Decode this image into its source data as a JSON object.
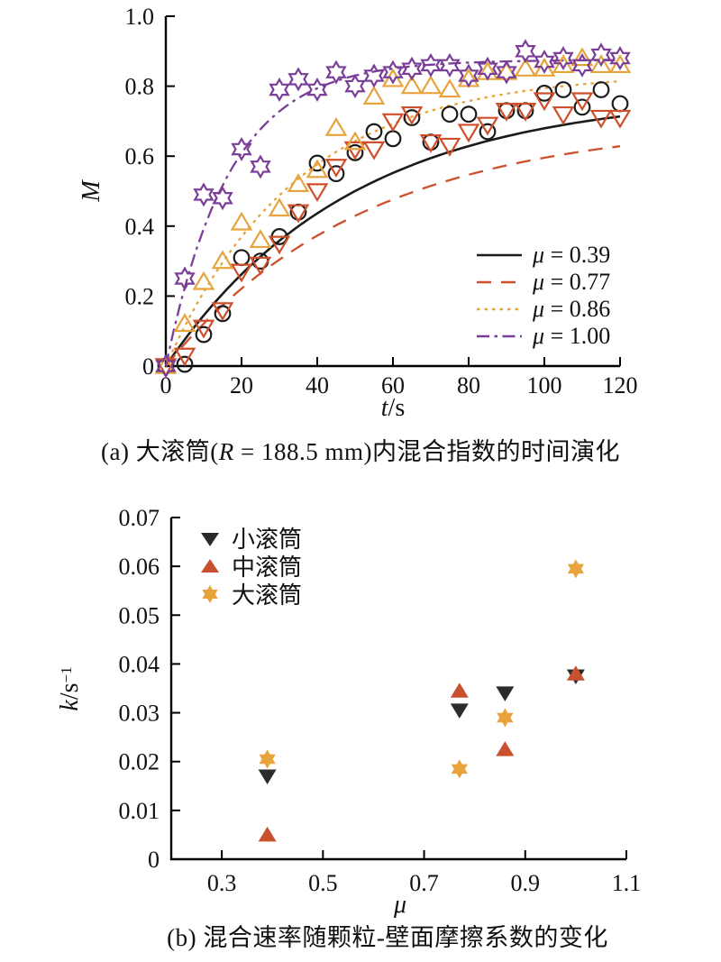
{
  "figure": {
    "background": "#ffffff",
    "axis_color": "#000000"
  },
  "captions": {
    "a": {
      "prefix": "(a) 大滚筒(",
      "var": "R",
      "mid": " = 188.5 mm)",
      "suffix": "内混合指数的时间演化"
    },
    "b": {
      "text": "(b) 混合速率随颗粒-壁面摩擦系数的变化"
    }
  },
  "chart_data": [
    {
      "id": "a",
      "type": "scatter",
      "title": "Mixing index evolution in large drum",
      "xlabel_parts": {
        "italic": "t",
        "rest": "/s"
      },
      "ylabel": "M",
      "xlim": [
        0,
        120
      ],
      "ylim": [
        0,
        1.0
      ],
      "xticks": [
        0,
        20,
        40,
        60,
        80,
        100,
        120
      ],
      "xtick_labels": [
        "0",
        "20",
        "40",
        "60",
        "80",
        "100",
        "120"
      ],
      "yticks": [
        0,
        0.2,
        0.4,
        0.6,
        0.8,
        1.0
      ],
      "ytick_labels": [
        "0",
        "0.2",
        "0.4",
        "0.6",
        "0.8",
        "1.0"
      ],
      "grid": false,
      "legend_position": "bottom-right",
      "series": [
        {
          "name": "mu-0.39",
          "legend_symbol": "μ",
          "legend_value": " = 0.39",
          "color": "#1b1b1b",
          "marker": "circle-open",
          "dash": "none",
          "fit": {
            "A": 0.78,
            "k": 0.0205
          },
          "points": [
            [
              0,
              0
            ],
            [
              5,
              0.005
            ],
            [
              10,
              0.09
            ],
            [
              15,
              0.15
            ],
            [
              20,
              0.31
            ],
            [
              25,
              0.3
            ],
            [
              30,
              0.37
            ],
            [
              35,
              0.44
            ],
            [
              40,
              0.58
            ],
            [
              45,
              0.55
            ],
            [
              50,
              0.61
            ],
            [
              55,
              0.67
            ],
            [
              60,
              0.65
            ],
            [
              65,
              0.71
            ],
            [
              70,
              0.64
            ],
            [
              75,
              0.72
            ],
            [
              80,
              0.72
            ],
            [
              85,
              0.67
            ],
            [
              90,
              0.73
            ],
            [
              95,
              0.73
            ],
            [
              100,
              0.78
            ],
            [
              105,
              0.79
            ],
            [
              110,
              0.74
            ],
            [
              115,
              0.79
            ],
            [
              120,
              0.75
            ]
          ]
        },
        {
          "name": "mu-0.77",
          "legend_symbol": "μ",
          "legend_value": " = 0.77",
          "color": "#CF4F2B",
          "marker": "triangle-down-open",
          "dash": "16 11",
          "fit": {
            "A": 0.7,
            "k": 0.019
          },
          "points": [
            [
              0,
              0
            ],
            [
              5,
              0.03
            ],
            [
              10,
              0.11
            ],
            [
              15,
              0.16
            ],
            [
              20,
              0.27
            ],
            [
              25,
              0.29
            ],
            [
              30,
              0.35
            ],
            [
              35,
              0.44
            ],
            [
              40,
              0.5
            ],
            [
              45,
              0.57
            ],
            [
              50,
              0.62
            ],
            [
              55,
              0.62
            ],
            [
              60,
              0.7
            ],
            [
              65,
              0.72
            ],
            [
              70,
              0.64
            ],
            [
              75,
              0.63
            ],
            [
              80,
              0.67
            ],
            [
              85,
              0.69
            ],
            [
              90,
              0.73
            ],
            [
              95,
              0.73
            ],
            [
              100,
              0.76
            ],
            [
              105,
              0.72
            ],
            [
              110,
              0.76
            ],
            [
              115,
              0.71
            ],
            [
              120,
              0.71
            ]
          ]
        },
        {
          "name": "mu-0.86",
          "legend_symbol": "μ",
          "legend_value": " = 0.86",
          "color": "#E8A33C",
          "marker": "triangle-up-open",
          "dash": "3.5 5",
          "fit": {
            "A": 0.84,
            "k": 0.029
          },
          "points": [
            [
              0,
              0
            ],
            [
              5,
              0.12
            ],
            [
              10,
              0.24
            ],
            [
              15,
              0.3
            ],
            [
              20,
              0.41
            ],
            [
              25,
              0.36
            ],
            [
              30,
              0.45
            ],
            [
              35,
              0.52
            ],
            [
              40,
              0.56
            ],
            [
              45,
              0.68
            ],
            [
              50,
              0.64
            ],
            [
              55,
              0.77
            ],
            [
              60,
              0.82
            ],
            [
              65,
              0.8
            ],
            [
              70,
              0.8
            ],
            [
              75,
              0.79
            ],
            [
              80,
              0.82
            ],
            [
              85,
              0.84
            ],
            [
              90,
              0.84
            ],
            [
              95,
              0.85
            ],
            [
              100,
              0.85
            ],
            [
              105,
              0.86
            ],
            [
              110,
              0.88
            ],
            [
              115,
              0.86
            ],
            [
              120,
              0.86
            ]
          ]
        },
        {
          "name": "mu-1.00",
          "legend_symbol": "μ",
          "legend_value": " = 1.00",
          "color": "#7A3E98",
          "marker": "star6-open",
          "dash": "14 5.5 3.5 5.5",
          "fit": {
            "A": 0.875,
            "k": 0.0595
          },
          "points": [
            [
              0,
              0
            ],
            [
              5,
              0.25
            ],
            [
              10,
              0.49
            ],
            [
              15,
              0.48
            ],
            [
              20,
              0.62
            ],
            [
              25,
              0.57
            ],
            [
              30,
              0.79
            ],
            [
              35,
              0.82
            ],
            [
              40,
              0.79
            ],
            [
              45,
              0.84
            ],
            [
              50,
              0.8
            ],
            [
              55,
              0.83
            ],
            [
              60,
              0.84
            ],
            [
              65,
              0.85
            ],
            [
              70,
              0.86
            ],
            [
              75,
              0.86
            ],
            [
              80,
              0.83
            ],
            [
              85,
              0.85
            ],
            [
              90,
              0.84
            ],
            [
              95,
              0.9
            ],
            [
              100,
              0.87
            ],
            [
              105,
              0.88
            ],
            [
              110,
              0.86
            ],
            [
              115,
              0.89
            ],
            [
              120,
              0.88
            ]
          ]
        }
      ]
    },
    {
      "id": "b",
      "type": "scatter",
      "title": "Mixing rate vs particle-wall friction coefficient",
      "xlabel": "μ",
      "ylabel_parts": {
        "italic": "k",
        "rest": "/s",
        "sup": "−1"
      },
      "xlim": [
        0.2,
        1.1
      ],
      "ylim": [
        0,
        0.07
      ],
      "xticks": [
        0.3,
        0.5,
        0.7,
        0.9,
        1.1
      ],
      "xtick_labels": [
        "0.3",
        "0.5",
        "0.7",
        "0.9",
        "1.1"
      ],
      "yticks": [
        0,
        0.01,
        0.02,
        0.03,
        0.04,
        0.05,
        0.06,
        0.07
      ],
      "ytick_labels": [
        "0",
        "0.01",
        "0.02",
        "0.03",
        "0.04",
        "0.05",
        "0.06",
        "0.07"
      ],
      "grid": false,
      "legend_position": "top-left",
      "series": [
        {
          "name": "small-drum",
          "label": "小滚筒",
          "color": "#2b2b2b",
          "marker": "triangle-down-filled",
          "points": [
            [
              0.39,
              0.017
            ],
            [
              0.77,
              0.0305
            ],
            [
              0.86,
              0.034
            ],
            [
              1.0,
              0.0375
            ]
          ]
        },
        {
          "name": "medium-drum",
          "label": "中滚筒",
          "color": "#C9502E",
          "marker": "triangle-up-filled",
          "points": [
            [
              0.39,
              0.005
            ],
            [
              0.77,
              0.0345
            ],
            [
              0.86,
              0.0225
            ],
            [
              1.0,
              0.038
            ]
          ]
        },
        {
          "name": "large-drum",
          "label": "大滚筒",
          "color": "#E8A33C",
          "marker": "star6-filled",
          "points": [
            [
              0.39,
              0.0205
            ],
            [
              0.77,
              0.0185
            ],
            [
              0.86,
              0.029
            ],
            [
              1.0,
              0.0595
            ]
          ]
        }
      ]
    }
  ]
}
